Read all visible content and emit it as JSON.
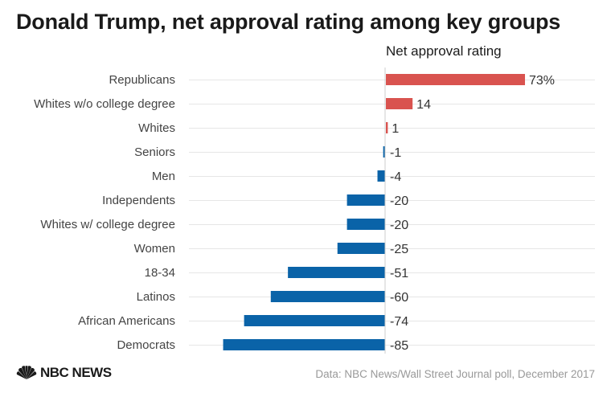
{
  "title": "Donald Trump, net approval rating among key groups",
  "footer": {
    "brand": "NBC NEWS",
    "brand_icon": "peacock-icon",
    "source": "Data: NBC News/Wall Street Journal poll, December 2017"
  },
  "colors": {
    "positive": "#d9534f",
    "negative": "#0a63a8"
  },
  "chart_data": {
    "type": "bar",
    "orientation": "horizontal",
    "title": "Donald Trump, net approval rating among key groups",
    "value_header": "Net approval rating",
    "categories": [
      "Republicans",
      "Whites w/o college degree",
      "Whites",
      "Seniors",
      "Men",
      "Independents",
      "Whites w/ college degree",
      "Women",
      "18-34",
      "Latinos",
      "African Americans",
      "Democrats"
    ],
    "values": [
      73,
      14,
      1,
      -1,
      -4,
      -20,
      -20,
      -25,
      -51,
      -60,
      -74,
      -85
    ],
    "value_labels": [
      "73%",
      "14",
      "1",
      "-1",
      "-4",
      "-20",
      "-20",
      "-25",
      "-51",
      "-60",
      "-74",
      "-85"
    ],
    "xlim": [
      -85,
      73
    ],
    "grid": true,
    "legend": "none"
  }
}
